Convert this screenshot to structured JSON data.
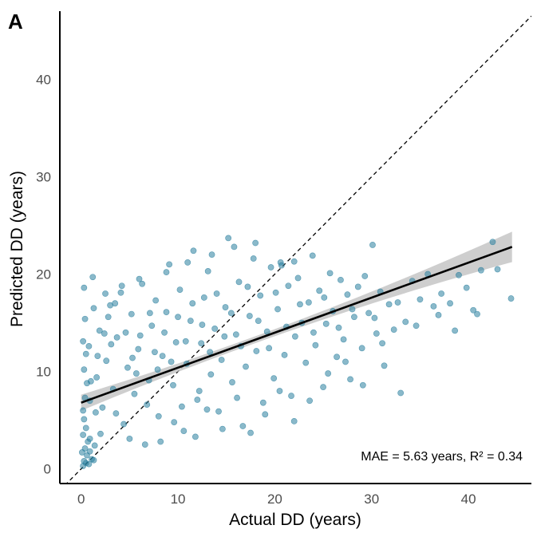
{
  "chart_data": {
    "type": "scatter",
    "panel_label": "A",
    "xlabel": "Actual DD (years)",
    "ylabel": "Predicted DD (years)",
    "xlim": [
      -2.2,
      46.5
    ],
    "ylim": [
      -1.5,
      47
    ],
    "x_ticks": [
      0,
      10,
      20,
      30,
      40
    ],
    "y_ticks": [
      0,
      10,
      20,
      30,
      40
    ],
    "grid": false,
    "point_color": "#2a7f9e",
    "fit_line": {
      "x": [
        0,
        44.5
      ],
      "y": [
        6.8,
        22.8
      ],
      "color": "#000000",
      "ci_color": "#bdbdbd"
    },
    "identity_line": {
      "x": [
        -2.2,
        46.5
      ],
      "y": [
        -2.2,
        46.5
      ],
      "style": "dashed"
    },
    "annotation": "MAE = 5.63 years, R² = 0.34",
    "points": [
      [
        0.3,
        0.8
      ],
      [
        0.6,
        1.4
      ],
      [
        0.4,
        2.1
      ],
      [
        0.2,
        3.5
      ],
      [
        0.8,
        0.5
      ],
      [
        1.1,
        1.0
      ],
      [
        0.5,
        4.2
      ],
      [
        0.3,
        5.1
      ],
      [
        0.7,
        2.8
      ],
      [
        0.1,
        1.7
      ],
      [
        1.4,
        2.4
      ],
      [
        0.9,
        3.1
      ],
      [
        0.2,
        6.0
      ],
      [
        0.4,
        7.3
      ],
      [
        0.6,
        8.8
      ],
      [
        0.3,
        10.2
      ],
      [
        0.5,
        11.8
      ],
      [
        0.2,
        13.1
      ],
      [
        0.4,
        15.4
      ],
      [
        0.3,
        18.6
      ],
      [
        1.2,
        19.7
      ],
      [
        0.8,
        12.6
      ],
      [
        1.6,
        9.4
      ],
      [
        1.9,
        14.2
      ],
      [
        2.2,
        6.3
      ],
      [
        2.6,
        11.1
      ],
      [
        3.0,
        16.8
      ],
      [
        3.3,
        8.2
      ],
      [
        3.7,
        13.5
      ],
      [
        4.1,
        18.1
      ],
      [
        4.4,
        4.6
      ],
      [
        4.8,
        10.4
      ],
      [
        5.2,
        15.9
      ],
      [
        5.5,
        7.7
      ],
      [
        5.9,
        12.3
      ],
      [
        6.3,
        19.0
      ],
      [
        6.6,
        2.5
      ],
      [
        7.0,
        9.1
      ],
      [
        7.3,
        14.7
      ],
      [
        7.7,
        17.3
      ],
      [
        8.0,
        5.4
      ],
      [
        8.4,
        11.6
      ],
      [
        8.8,
        16.1
      ],
      [
        9.1,
        21.0
      ],
      [
        9.5,
        8.6
      ],
      [
        9.8,
        13.0
      ],
      [
        10.2,
        18.4
      ],
      [
        10.6,
        3.9
      ],
      [
        10.9,
        10.8
      ],
      [
        11.3,
        15.2
      ],
      [
        11.6,
        22.4
      ],
      [
        12.0,
        7.1
      ],
      [
        12.4,
        12.9
      ],
      [
        12.7,
        17.6
      ],
      [
        13.1,
        20.3
      ],
      [
        13.4,
        9.7
      ],
      [
        13.8,
        14.4
      ],
      [
        14.2,
        5.9
      ],
      [
        14.5,
        11.2
      ],
      [
        14.9,
        16.6
      ],
      [
        15.2,
        23.7
      ],
      [
        15.6,
        8.9
      ],
      [
        16.0,
        13.8
      ],
      [
        16.3,
        19.2
      ],
      [
        16.7,
        4.4
      ],
      [
        17.0,
        10.5
      ],
      [
        17.4,
        15.7
      ],
      [
        17.8,
        21.6
      ],
      [
        18.1,
        12.1
      ],
      [
        18.5,
        17.8
      ],
      [
        18.8,
        6.8
      ],
      [
        19.2,
        14.1
      ],
      [
        19.6,
        20.7
      ],
      [
        19.9,
        9.3
      ],
      [
        20.3,
        16.4
      ],
      [
        20.6,
        21.2
      ],
      [
        21.0,
        11.7
      ],
      [
        21.4,
        18.8
      ],
      [
        21.7,
        7.5
      ],
      [
        22.1,
        13.6
      ],
      [
        22.4,
        19.6
      ],
      [
        22.8,
        15.0
      ],
      [
        23.2,
        10.9
      ],
      [
        23.5,
        17.1
      ],
      [
        23.9,
        21.9
      ],
      [
        24.2,
        12.7
      ],
      [
        24.6,
        18.3
      ],
      [
        25.0,
        8.4
      ],
      [
        25.3,
        14.9
      ],
      [
        25.7,
        20.1
      ],
      [
        26.0,
        16.2
      ],
      [
        26.4,
        11.5
      ],
      [
        26.8,
        19.4
      ],
      [
        27.1,
        13.3
      ],
      [
        27.5,
        17.9
      ],
      [
        27.8,
        9.2
      ],
      [
        28.2,
        15.6
      ],
      [
        28.6,
        18.7
      ],
      [
        29.0,
        12.4
      ],
      [
        29.3,
        19.8
      ],
      [
        29.7,
        16.0
      ],
      [
        30.1,
        23.0
      ],
      [
        30.5,
        13.9
      ],
      [
        30.9,
        18.2
      ],
      [
        31.3,
        10.6
      ],
      [
        31.8,
        16.9
      ],
      [
        32.3,
        14.3
      ],
      [
        33.0,
        7.8
      ],
      [
        33.5,
        15.1
      ],
      [
        34.2,
        19.3
      ],
      [
        35.0,
        17.4
      ],
      [
        35.8,
        20.0
      ],
      [
        36.4,
        16.7
      ],
      [
        37.2,
        18.0
      ],
      [
        38.1,
        17.0
      ],
      [
        39.0,
        19.9
      ],
      [
        39.8,
        18.6
      ],
      [
        40.5,
        16.3
      ],
      [
        41.3,
        20.4
      ],
      [
        42.5,
        23.3
      ],
      [
        43.0,
        20.5
      ],
      [
        44.4,
        17.5
      ],
      [
        22.0,
        21.3
      ],
      [
        20.7,
        20.9
      ],
      [
        18.0,
        23.2
      ],
      [
        15.8,
        22.8
      ],
      [
        13.5,
        22.0
      ],
      [
        11.0,
        21.2
      ],
      [
        8.8,
        20.2
      ],
      [
        6.0,
        19.5
      ],
      [
        4.2,
        18.8
      ],
      [
        2.5,
        18.0
      ],
      [
        1.3,
        16.5
      ],
      [
        3.6,
        5.7
      ],
      [
        5.0,
        3.1
      ],
      [
        6.8,
        6.6
      ],
      [
        8.2,
        2.8
      ],
      [
        9.6,
        4.8
      ],
      [
        11.8,
        3.3
      ],
      [
        13.0,
        6.1
      ],
      [
        14.6,
        4.1
      ],
      [
        16.1,
        7.3
      ],
      [
        17.5,
        3.7
      ],
      [
        19.0,
        5.6
      ],
      [
        20.5,
        8.0
      ],
      [
        22.0,
        4.9
      ],
      [
        23.6,
        7.0
      ],
      [
        25.5,
        9.8
      ],
      [
        27.3,
        11.0
      ],
      [
        29.1,
        8.6
      ],
      [
        31.1,
        12.9
      ],
      [
        34.6,
        14.7
      ],
      [
        36.9,
        15.8
      ],
      [
        38.6,
        14.2
      ],
      [
        40.9,
        15.9
      ],
      [
        12.2,
        8.0
      ],
      [
        10.4,
        6.4
      ],
      [
        7.6,
        12.0
      ],
      [
        5.7,
        9.8
      ],
      [
        3.1,
        12.8
      ],
      [
        2.0,
        3.6
      ],
      [
        1.5,
        5.8
      ],
      [
        0.9,
        7.0
      ],
      [
        1.0,
        9.0
      ],
      [
        1.7,
        11.6
      ],
      [
        2.4,
        13.9
      ],
      [
        2.8,
        15.6
      ],
      [
        3.5,
        17.0
      ],
      [
        4.6,
        14.0
      ],
      [
        5.3,
        11.4
      ],
      [
        6.1,
        13.7
      ],
      [
        7.1,
        16.0
      ],
      [
        7.9,
        10.2
      ],
      [
        8.6,
        14.0
      ],
      [
        9.3,
        11.0
      ],
      [
        10.0,
        15.6
      ],
      [
        10.8,
        13.1
      ],
      [
        11.5,
        17.0
      ],
      [
        12.5,
        14.8
      ],
      [
        13.3,
        12.0
      ],
      [
        14.0,
        18.0
      ],
      [
        14.8,
        13.6
      ],
      [
        15.5,
        16.0
      ],
      [
        16.5,
        12.6
      ],
      [
        17.2,
        18.7
      ],
      [
        18.3,
        15.2
      ],
      [
        19.4,
        12.4
      ],
      [
        20.1,
        18.1
      ],
      [
        21.2,
        14.6
      ],
      [
        22.6,
        16.9
      ],
      [
        24.0,
        14.0
      ],
      [
        25.1,
        17.6
      ],
      [
        26.6,
        14.5
      ],
      [
        28.0,
        16.4
      ],
      [
        30.3,
        15.5
      ],
      [
        32.7,
        17.1
      ],
      [
        0.2,
        0.3
      ],
      [
        0.5,
        0.6
      ],
      [
        0.9,
        1.8
      ],
      [
        1.3,
        0.9
      ]
    ]
  }
}
